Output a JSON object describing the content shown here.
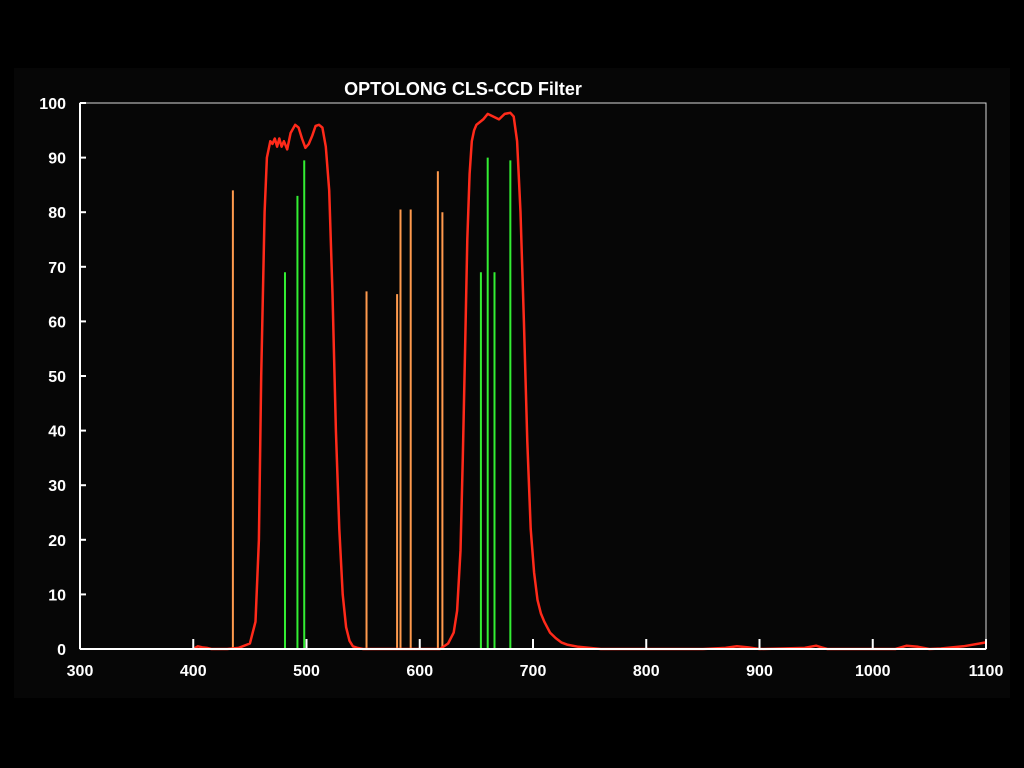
{
  "chart_data": {
    "type": "line",
    "title": "OPTOLONG CLS-CCD Filter",
    "xlabel": "",
    "ylabel": "",
    "xlim": [
      300,
      1100
    ],
    "ylim": [
      0,
      100
    ],
    "x_ticks": [
      300,
      400,
      500,
      600,
      700,
      800,
      900,
      1000,
      1100
    ],
    "y_ticks": [
      0,
      10,
      20,
      30,
      40,
      50,
      60,
      70,
      80,
      90,
      100
    ],
    "grid": false,
    "colors": {
      "background": "#000000",
      "axes": "#ffffff",
      "transmission": "#ff2a1a",
      "orange_lines": "#ff9a4d",
      "green_lines": "#33ee33"
    },
    "series": [
      {
        "x": [
          400,
          404,
          408,
          412,
          416,
          420,
          425,
          430,
          440,
          450,
          455,
          458,
          460,
          463,
          465,
          468,
          470,
          472,
          474,
          476,
          478,
          480,
          483,
          486,
          490,
          493,
          496,
          499,
          502,
          505,
          508,
          511,
          514,
          517,
          520,
          523,
          526,
          529,
          532,
          535,
          538,
          541,
          545,
          550,
          560,
          570,
          580,
          590,
          600,
          605,
          610,
          615,
          618,
          620,
          625,
          630,
          633,
          636,
          638,
          640,
          642,
          644,
          646,
          648,
          650,
          653,
          656,
          660,
          665,
          670,
          675,
          680,
          683,
          686,
          689,
          692,
          695,
          698,
          701,
          704,
          707,
          710,
          715,
          720,
          725,
          730,
          740,
          750,
          760,
          780,
          800,
          850,
          870,
          880,
          890,
          900,
          920,
          940,
          950,
          955,
          960,
          980,
          1000,
          1020,
          1030,
          1040,
          1050,
          1060,
          1080,
          1100
        ],
        "y": [
          0,
          0.5,
          0.3,
          0.2,
          0,
          0,
          0,
          0,
          0.2,
          1,
          5,
          20,
          50,
          80,
          90,
          93,
          92.5,
          93.5,
          92,
          93.5,
          92,
          93,
          91.5,
          94.5,
          96,
          95.5,
          93.5,
          91.8,
          92.5,
          94,
          95.8,
          96,
          95.5,
          92,
          84,
          65,
          40,
          22,
          10,
          4,
          1.5,
          0.5,
          0.2,
          0,
          0,
          0,
          0,
          0,
          0,
          0,
          0,
          0,
          0,
          0.3,
          1,
          3,
          7,
          18,
          35,
          55,
          75,
          87,
          93,
          95,
          96,
          96.5,
          97,
          98,
          97.5,
          97,
          98,
          98.2,
          97.5,
          93,
          80,
          60,
          38,
          22,
          14,
          9,
          6.5,
          5,
          3,
          2,
          1.2,
          0.8,
          0.4,
          0.2,
          0,
          0,
          0,
          0,
          0.2,
          0.5,
          0.3,
          0,
          0.1,
          0.2,
          0.6,
          0.3,
          0,
          0,
          0,
          0,
          0.6,
          0.4,
          0,
          0.1,
          0.5,
          1.2
        ]
      }
    ],
    "emission_lines": [
      {
        "group": "orange",
        "x": 435,
        "y": 84
      },
      {
        "group": "green",
        "x": 481,
        "y": 69
      },
      {
        "group": "green",
        "x": 492,
        "y": 83
      },
      {
        "group": "green",
        "x": 498,
        "y": 89.5
      },
      {
        "group": "orange",
        "x": 553,
        "y": 65.5
      },
      {
        "group": "orange",
        "x": 580,
        "y": 65
      },
      {
        "group": "orange",
        "x": 583,
        "y": 80.5
      },
      {
        "group": "orange",
        "x": 592,
        "y": 80.5
      },
      {
        "group": "orange",
        "x": 616,
        "y": 87.5
      },
      {
        "group": "orange",
        "x": 620,
        "y": 80
      },
      {
        "group": "green",
        "x": 654,
        "y": 69
      },
      {
        "group": "green",
        "x": 660,
        "y": 90
      },
      {
        "group": "green",
        "x": 666,
        "y": 69
      },
      {
        "group": "green",
        "x": 680,
        "y": 89.5
      }
    ]
  }
}
